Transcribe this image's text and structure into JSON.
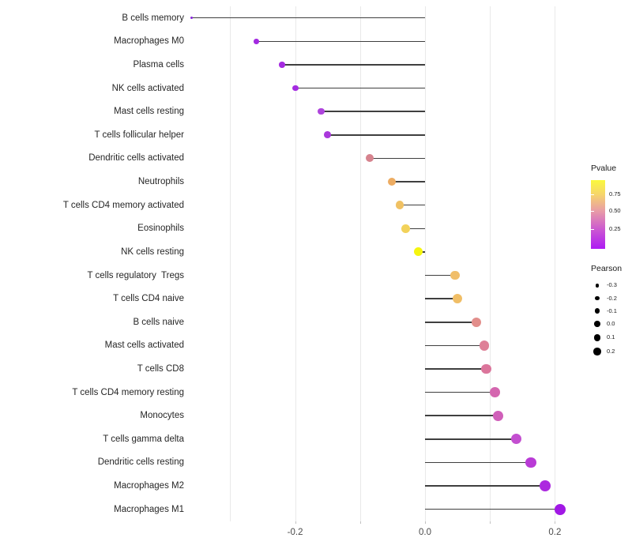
{
  "figure": {
    "background": "#ffffff",
    "stem_color": "#3f3f3f",
    "gridline_color": "#e9e9e9",
    "axis_text_color": "#4a4a4a"
  },
  "legend": {
    "pvalue": {
      "title": "Pvalue",
      "tick_labels": [
        "0.75",
        "0.50",
        "0.25"
      ],
      "gradient_stops": [
        "#FAF93D",
        "#F6D46C",
        "#E99EA5",
        "#CB58D1",
        "#AE1AF4"
      ]
    },
    "pearson": {
      "title": "Pearson",
      "entries": [
        {
          "label": "-0.3",
          "r": 2.3
        },
        {
          "label": "-0.2",
          "r": 2.8
        },
        {
          "label": "-0.1",
          "r": 3.3
        },
        {
          "label": "0.0",
          "r": 3.8
        },
        {
          "label": "0.1",
          "r": 4.3
        },
        {
          "label": "0.2",
          "r": 4.7
        }
      ]
    }
  },
  "chart_data": {
    "type": "lollipop",
    "orientation": "horizontal",
    "title": "",
    "xlabel": "",
    "ylabel": "",
    "xlim": [
      -0.36,
      0.235
    ],
    "gridlines_x": [
      -0.3,
      -0.2,
      -0.1,
      0.0,
      0.1,
      0.2
    ],
    "axis_ticks_x": [
      -0.2,
      -0.1,
      0.0,
      0.1,
      0.2
    ],
    "x_tick_labels": [
      {
        "value": -0.2,
        "label": "-0.2"
      },
      {
        "value": 0.0,
        "label": "0.0"
      },
      {
        "value": 0.2,
        "label": "0.2"
      }
    ],
    "color_legend": "Pvalue",
    "size_legend": "Pearson",
    "series": [
      {
        "label": "B cells memory",
        "pearson": -0.36,
        "color": "#8826DB"
      },
      {
        "label": "Macrophages M0",
        "pearson": -0.26,
        "color": "#A32AE1"
      },
      {
        "label": "Plasma cells",
        "pearson": -0.22,
        "color": "#A52BE0"
      },
      {
        "label": "NK cells activated",
        "pearson": -0.2,
        "color": "#A42BE1"
      },
      {
        "label": "Mast cells resting",
        "pearson": -0.16,
        "color": "#AE44DC"
      },
      {
        "label": "T cells follicular helper",
        "pearson": -0.15,
        "color": "#AA38DC"
      },
      {
        "label": "Dendritic cells activated",
        "pearson": -0.085,
        "color": "#D6838E"
      },
      {
        "label": "Neutrophils",
        "pearson": -0.051,
        "color": "#EDAC62"
      },
      {
        "label": "T cells CD4 memory activated",
        "pearson": -0.039,
        "color": "#F0C163"
      },
      {
        "label": "Eosinophils",
        "pearson": -0.03,
        "color": "#F2D25A"
      },
      {
        "label": "NK cells resting",
        "pearson": -0.01,
        "color": "#F5F50F"
      },
      {
        "label": "T cells regulatory  Tregs",
        "pearson": 0.046,
        "color": "#F0BE6A"
      },
      {
        "label": "T cells CD4 naive",
        "pearson": 0.05,
        "color": "#F0BE66"
      },
      {
        "label": "B cells naive",
        "pearson": 0.079,
        "color": "#E28E8B"
      },
      {
        "label": "Mast cells activated",
        "pearson": 0.091,
        "color": "#DE8097"
      },
      {
        "label": "T cells CD8",
        "pearson": 0.094,
        "color": "#DB759B"
      },
      {
        "label": "T cells CD4 memory resting",
        "pearson": 0.108,
        "color": "#D466AF"
      },
      {
        "label": "Monocytes",
        "pearson": 0.113,
        "color": "#D05FB9"
      },
      {
        "label": "T cells gamma delta",
        "pearson": 0.141,
        "color": "#C34FD0"
      },
      {
        "label": "Dendritic cells resting",
        "pearson": 0.163,
        "color": "#B93BD6"
      },
      {
        "label": "Macrophages M2",
        "pearson": 0.185,
        "color": "#AC2ADF"
      },
      {
        "label": "Macrophages M1",
        "pearson": 0.208,
        "color": "#A118E5"
      }
    ]
  }
}
